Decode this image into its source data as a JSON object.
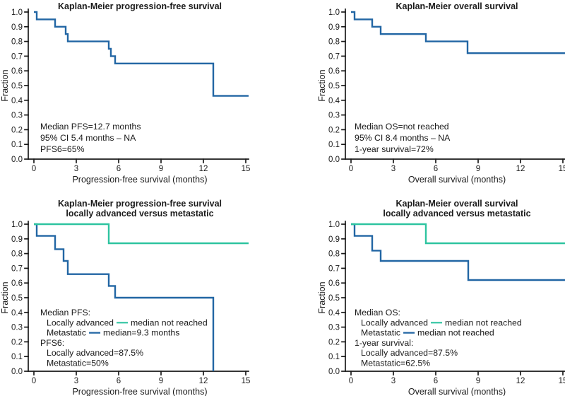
{
  "figure": {
    "background": "#ffffff",
    "text_color": "#1a1a1a",
    "colors": {
      "km_blue": "#2266a4",
      "km_teal": "#2ec4a0"
    }
  },
  "chart_data": [
    {
      "type": "line",
      "subtype": "kaplan-meier-step",
      "title_lines": [
        "Kaplan-Meier progression-free survival"
      ],
      "xlabel": "Progression-free survival (months)",
      "ylabel": "Fraction",
      "xlim": [
        0,
        15.2
      ],
      "ylim": [
        0.0,
        1.0
      ],
      "xticks": [
        "0",
        "3",
        "6",
        "9",
        "12",
        "15"
      ],
      "yticks": [
        "0.0",
        "0.1",
        "0.2",
        "0.3",
        "0.4",
        "0.5",
        "0.6",
        "0.7",
        "0.8",
        "0.9",
        "1.0"
      ],
      "grid": false,
      "series": [
        {
          "id": "all",
          "color": "#2266a4",
          "steps": [
            [
              0,
              1.0
            ],
            [
              0.2,
              0.95
            ],
            [
              1.5,
              0.9
            ],
            [
              2.25,
              0.85
            ],
            [
              2.4,
              0.8
            ],
            [
              5.3,
              0.75
            ],
            [
              5.45,
              0.7
            ],
            [
              5.75,
              0.65
            ],
            [
              12.7,
              0.43
            ]
          ],
          "end_x": 15.2
        }
      ],
      "annotation": [
        {
          "indent": 0,
          "parts": [
            {
              "text": "Median PFS=12.7 months"
            }
          ]
        },
        {
          "indent": 0,
          "parts": [
            {
              "text": "95% CI 5.4 months – NA"
            }
          ]
        },
        {
          "indent": 0,
          "parts": [
            {
              "text": "PFS6=65%"
            }
          ]
        }
      ]
    },
    {
      "type": "line",
      "subtype": "kaplan-meier-step",
      "title_lines": [
        "Kaplan-Meier overall survival"
      ],
      "xlabel": "Overall survival (months)",
      "ylabel": "Fraction",
      "xlim": [
        0,
        15.2
      ],
      "ylim": [
        0.0,
        1.0
      ],
      "xticks": [
        "0",
        "3",
        "6",
        "9",
        "12",
        "15"
      ],
      "yticks": [
        "0.0",
        "0.1",
        "0.2",
        "0.3",
        "0.4",
        "0.5",
        "0.6",
        "0.7",
        "0.8",
        "0.9",
        "1.0"
      ],
      "grid": false,
      "series": [
        {
          "id": "all",
          "color": "#2266a4",
          "steps": [
            [
              0,
              1.0
            ],
            [
              0.25,
              0.95
            ],
            [
              1.5,
              0.9
            ],
            [
              2.1,
              0.85
            ],
            [
              5.3,
              0.8
            ],
            [
              8.25,
              0.72
            ]
          ],
          "end_x": 15.2
        }
      ],
      "annotation": [
        {
          "indent": 0,
          "parts": [
            {
              "text": "Median OS=not reached"
            }
          ]
        },
        {
          "indent": 0,
          "parts": [
            {
              "text": "95% CI 8.4 months – NA"
            }
          ]
        },
        {
          "indent": 0,
          "parts": [
            {
              "text": "1-year survival=72%"
            }
          ]
        }
      ]
    },
    {
      "type": "line",
      "subtype": "kaplan-meier-step",
      "title_lines": [
        "Kaplan-Meier progression-free survival",
        "locally advanced versus metastatic"
      ],
      "xlabel": "Progression-free survival (months)",
      "ylabel": "Fraction",
      "xlim": [
        0,
        15.2
      ],
      "ylim": [
        0.0,
        1.0
      ],
      "xticks": [
        "0",
        "3",
        "6",
        "9",
        "12",
        "15"
      ],
      "yticks": [
        "0.0",
        "0.1",
        "0.2",
        "0.3",
        "0.4",
        "0.5",
        "0.6",
        "0.7",
        "0.8",
        "0.9",
        "1.0"
      ],
      "grid": false,
      "series": [
        {
          "id": "metastatic",
          "name": "Metastatic",
          "color": "#2266a4",
          "steps": [
            [
              0,
              1.0
            ],
            [
              0.2,
              0.92
            ],
            [
              1.5,
              0.83
            ],
            [
              2.1,
              0.75
            ],
            [
              2.4,
              0.66
            ],
            [
              5.3,
              0.58
            ],
            [
              5.75,
              0.5
            ],
            [
              12.7,
              0.0
            ]
          ],
          "end_x": 12.7
        },
        {
          "id": "locally-advanced",
          "name": "Locally advanced",
          "color": "#2ec4a0",
          "steps": [
            [
              0,
              1.0
            ],
            [
              5.3,
              0.87
            ]
          ],
          "end_x": 15.2
        }
      ],
      "annotation": [
        {
          "indent": 0,
          "parts": [
            {
              "text": "Median PFS:"
            }
          ]
        },
        {
          "indent": 1,
          "parts": [
            {
              "text": "Locally advanced"
            },
            {
              "dash": "#2ec4a0"
            },
            {
              "text": "median not reached"
            }
          ]
        },
        {
          "indent": 1,
          "parts": [
            {
              "text": "Metastatic"
            },
            {
              "dash": "#2266a4"
            },
            {
              "text": "median=9.3 months"
            }
          ]
        },
        {
          "indent": 0,
          "parts": [
            {
              "text": "PFS6:"
            }
          ]
        },
        {
          "indent": 1,
          "parts": [
            {
              "text": "Locally advanced=87.5%"
            }
          ]
        },
        {
          "indent": 1,
          "parts": [
            {
              "text": "Metastatic=50%"
            }
          ]
        }
      ]
    },
    {
      "type": "line",
      "subtype": "kaplan-meier-step",
      "title_lines": [
        "Kaplan-Meier overall survival",
        "locally advanced versus metastatic"
      ],
      "xlabel": "Overall survival (months)",
      "ylabel": "Fraction",
      "xlim": [
        0,
        15.2
      ],
      "ylim": [
        0.0,
        1.0
      ],
      "xticks": [
        "0",
        "3",
        "6",
        "9",
        "12",
        "15"
      ],
      "yticks": [
        "0.0",
        "0.1",
        "0.2",
        "0.3",
        "0.4",
        "0.5",
        "0.6",
        "0.7",
        "0.8",
        "0.9",
        "1.0"
      ],
      "grid": false,
      "series": [
        {
          "id": "metastatic",
          "name": "Metastatic",
          "color": "#2266a4",
          "steps": [
            [
              0,
              1.0
            ],
            [
              0.25,
              0.92
            ],
            [
              1.5,
              0.82
            ],
            [
              2.1,
              0.75
            ],
            [
              8.3,
              0.62
            ]
          ],
          "end_x": 15.2
        },
        {
          "id": "locally-advanced",
          "name": "Locally advanced",
          "color": "#2ec4a0",
          "steps": [
            [
              0,
              1.0
            ],
            [
              5.3,
              0.87
            ]
          ],
          "end_x": 15.2
        }
      ],
      "annotation": [
        {
          "indent": 0,
          "parts": [
            {
              "text": "Median OS:"
            }
          ]
        },
        {
          "indent": 1,
          "parts": [
            {
              "text": "Locally advanced"
            },
            {
              "dash": "#2ec4a0"
            },
            {
              "text": "median not reached"
            }
          ]
        },
        {
          "indent": 1,
          "parts": [
            {
              "text": "Metastatic"
            },
            {
              "dash": "#2266a4"
            },
            {
              "text": "median not reached"
            }
          ]
        },
        {
          "indent": 0,
          "parts": [
            {
              "text": "1-year survival:"
            }
          ]
        },
        {
          "indent": 1,
          "parts": [
            {
              "text": "Locally advanced=87.5%"
            }
          ]
        },
        {
          "indent": 1,
          "parts": [
            {
              "text": "Metastatic=62.5%"
            }
          ]
        }
      ]
    }
  ]
}
